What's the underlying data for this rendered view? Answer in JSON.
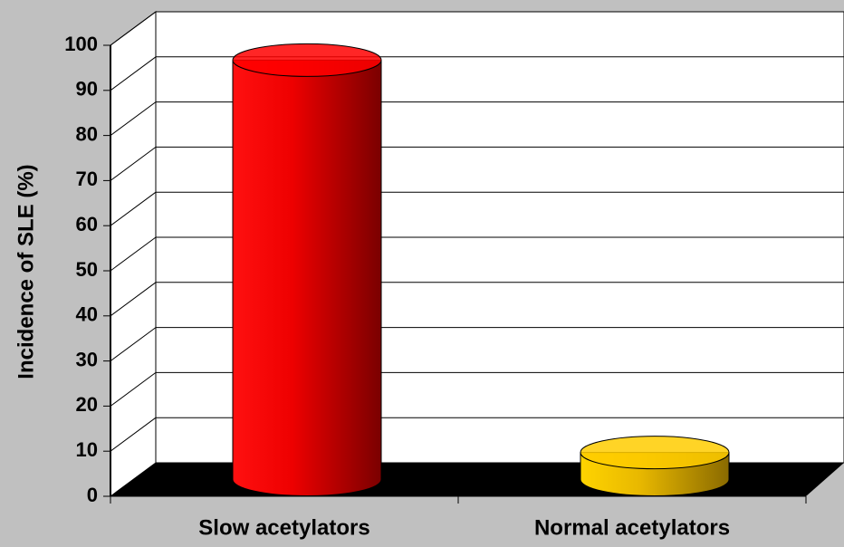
{
  "chart_data": {
    "type": "cylinder-bar",
    "y_label": "Incidence of SLE (%)",
    "categories": [
      "Slow acetylators",
      "Normal acetylators"
    ],
    "values": [
      93,
      6
    ],
    "colors": [
      "#ff0000",
      "#ffcc00"
    ],
    "ylim": [
      0,
      100
    ],
    "yticks": [
      0,
      10,
      20,
      30,
      40,
      50,
      60,
      70,
      80,
      90,
      100
    ],
    "grid": true
  }
}
